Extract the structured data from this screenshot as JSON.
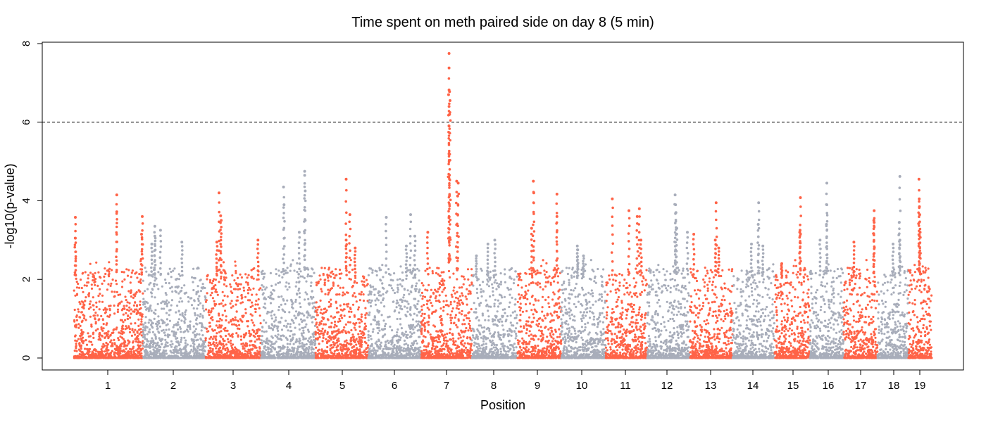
{
  "chart_data": {
    "type": "scatter",
    "subtype": "manhattan",
    "title": "Time spent on meth paired side on day 8 (5 min)",
    "xlabel": "Position",
    "ylabel": "-log10(p-value)",
    "ylim": [
      0,
      8
    ],
    "yticks": [
      0,
      2,
      4,
      6,
      8
    ],
    "threshold": 6,
    "threshold_style": "dashed",
    "grid": false,
    "legend": "none",
    "colors": {
      "odd_chromosome": "#ff6347",
      "even_chromosome": "#a8adba",
      "threshold": "#000000"
    },
    "chromosomes": [
      {
        "label": "1",
        "color": "#ff6347",
        "max": 4.15,
        "top_points": [
          4.15,
          3.72,
          3.6,
          3.58,
          3.15,
          3.05
        ]
      },
      {
        "label": "2",
        "color": "#a8adba",
        "max": 3.35,
        "top_points": [
          3.35,
          3.25,
          3.1,
          2.95,
          2.9
        ]
      },
      {
        "label": "3",
        "color": "#ff6347",
        "max": 4.2,
        "top_points": [
          4.2,
          3.62,
          3.5,
          3.0,
          2.95
        ]
      },
      {
        "label": "4",
        "color": "#a8adba",
        "max": 4.75,
        "top_points": [
          4.75,
          4.65,
          4.35,
          4.25,
          3.9,
          3.2
        ]
      },
      {
        "label": "5",
        "color": "#ff6347",
        "max": 4.55,
        "top_points": [
          4.55,
          3.65,
          3.0,
          2.8
        ]
      },
      {
        "label": "6",
        "color": "#a8adba",
        "max": 3.65,
        "top_points": [
          3.65,
          3.58,
          3.1,
          2.85
        ]
      },
      {
        "label": "7",
        "color": "#ff6347",
        "max": 7.75,
        "top_points": [
          7.75,
          7.38,
          6.82,
          6.78,
          6.7,
          6.55,
          6.4,
          6.2,
          5.9,
          4.5,
          4.45,
          4.12,
          3.2
        ]
      },
      {
        "label": "8",
        "color": "#a8adba",
        "max": 3.0,
        "top_points": [
          3.0,
          2.9,
          2.6
        ]
      },
      {
        "label": "9",
        "color": "#ff6347",
        "max": 4.5,
        "top_points": [
          4.5,
          4.2,
          4.17,
          3.6,
          3.3
        ]
      },
      {
        "label": "10",
        "color": "#a8adba",
        "max": 2.85,
        "top_points": [
          2.85,
          2.75,
          2.6
        ]
      },
      {
        "label": "11",
        "color": "#ff6347",
        "max": 4.05,
        "top_points": [
          4.05,
          3.8,
          3.75,
          3.6,
          3.0
        ]
      },
      {
        "label": "12",
        "color": "#a8adba",
        "max": 4.15,
        "top_points": [
          4.15,
          3.9,
          3.7,
          3.3,
          3.2
        ]
      },
      {
        "label": "13",
        "color": "#ff6347",
        "max": 3.95,
        "top_points": [
          3.95,
          3.15,
          3.0,
          2.8
        ]
      },
      {
        "label": "14",
        "color": "#a8adba",
        "max": 3.95,
        "top_points": [
          3.95,
          3.4,
          2.9,
          2.85
        ]
      },
      {
        "label": "15",
        "color": "#ff6347",
        "max": 4.08,
        "top_points": [
          4.08,
          3.25,
          3.2,
          2.4
        ]
      },
      {
        "label": "16",
        "color": "#a8adba",
        "max": 4.45,
        "top_points": [
          4.45,
          3.9,
          3.4,
          3.0
        ]
      },
      {
        "label": "17",
        "color": "#ff6347",
        "max": 3.75,
        "top_points": [
          3.75,
          3.5,
          3.45,
          2.95
        ]
      },
      {
        "label": "18",
        "color": "#a8adba",
        "max": 4.62,
        "top_points": [
          4.62,
          3.45,
          3.0,
          2.9
        ]
      },
      {
        "label": "19",
        "color": "#ff6347",
        "max": 4.55,
        "top_points": [
          4.55,
          4.05,
          3.85,
          3.65,
          3.2
        ]
      }
    ]
  }
}
